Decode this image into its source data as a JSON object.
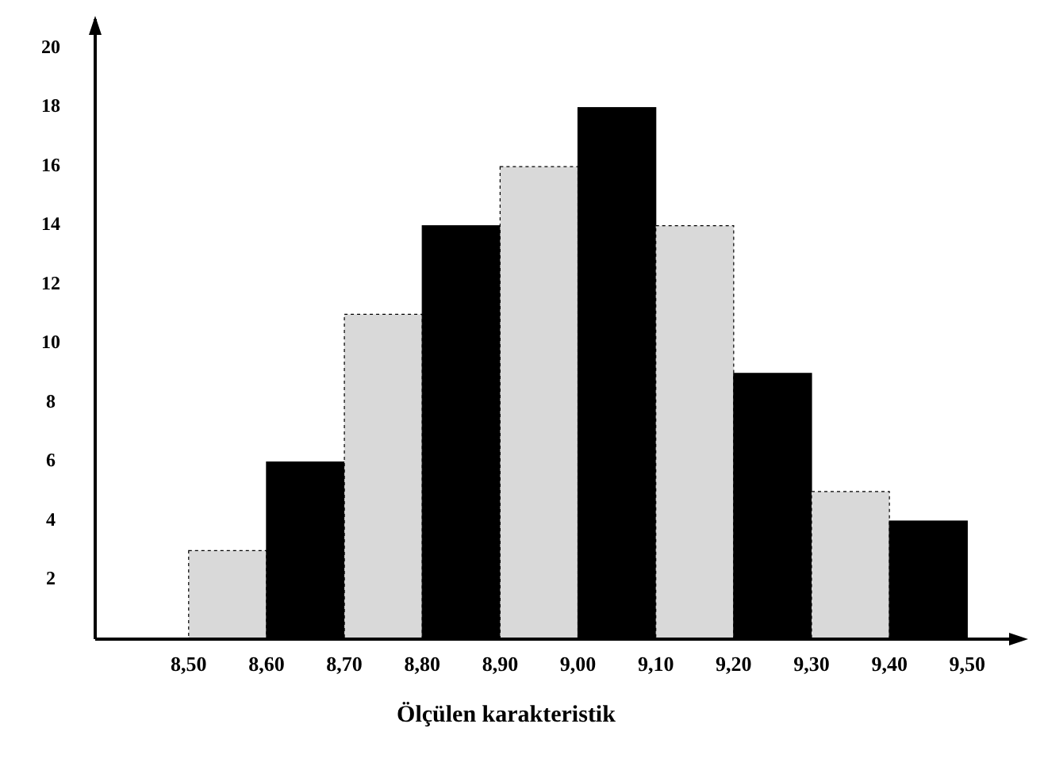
{
  "chart_data": {
    "type": "histogram",
    "xlabel": "Ölçülen karakteristik",
    "bins": [
      8.5,
      8.6,
      8.7,
      8.8,
      8.9,
      9.0,
      9.1,
      9.2,
      9.3,
      9.4,
      9.5
    ],
    "values": [
      3,
      6,
      11,
      14,
      16,
      18,
      14,
      9,
      5,
      4
    ],
    "colors": [
      "#d9d9d9",
      "#000000",
      "#d9d9d9",
      "#000000",
      "#d9d9d9",
      "#000000",
      "#d9d9d9",
      "#000000",
      "#d9d9d9",
      "#000000"
    ],
    "xlim": [
      8.38,
      9.57
    ],
    "ylim": [
      0,
      21
    ],
    "xticks": [
      {
        "value": 8.5,
        "label": "8,50"
      },
      {
        "value": 8.6,
        "label": "8,60"
      },
      {
        "value": 8.7,
        "label": "8,70"
      },
      {
        "value": 8.8,
        "label": "8,80"
      },
      {
        "value": 8.9,
        "label": "8,90"
      },
      {
        "value": 9.0,
        "label": "9,00"
      },
      {
        "value": 9.1,
        "label": "9,10"
      },
      {
        "value": 9.2,
        "label": "9,20"
      },
      {
        "value": 9.3,
        "label": "9,30"
      },
      {
        "value": 9.4,
        "label": "9,40"
      },
      {
        "value": 9.5,
        "label": "9,50"
      }
    ],
    "yticks": [
      2,
      4,
      6,
      8,
      10,
      12,
      14,
      16,
      18,
      20
    ],
    "grid": false
  }
}
